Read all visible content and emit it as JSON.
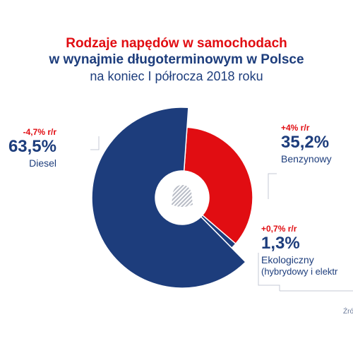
{
  "title": {
    "line1": "Rodzaje napędów w samochodach",
    "line2": "w wynajmie długoterminowym w Polsce",
    "line3": "na koniec I półrocza 2018 roku"
  },
  "labels": {
    "diesel": {
      "change": "-4,7% r/r",
      "value": "63,5%",
      "name": "Diesel"
    },
    "petrol": {
      "change": "+4% r/r",
      "value": "35,2%",
      "name": "Benzynowy"
    },
    "eco": {
      "change": "+0,7% r/r",
      "value": "1,3%",
      "name": "Ekologiczny",
      "sub": "(hybrydowy i elektr"
    }
  },
  "source": "Źró",
  "colors": {
    "diesel": "#1d3d7c",
    "petrol": "#e10d12",
    "eco": "#1d3d7c",
    "title_red": "#e10d12",
    "title_blue": "#1d3d7c"
  },
  "chart_data": {
    "type": "pie",
    "title": "Rodzaje napędów w samochodach w wynajmie długoterminowym w Polsce",
    "subtitle": "na koniec I półrocza 2018 roku",
    "categories": [
      "Benzynowy",
      "Ekologiczny",
      "Diesel"
    ],
    "values": [
      35.2,
      1.3,
      63.5
    ],
    "unit": "%",
    "yoy_change": [
      "+4% r/r",
      "+0,7% r/r",
      "-4,7% r/r"
    ],
    "donut": true,
    "legend": "none"
  }
}
